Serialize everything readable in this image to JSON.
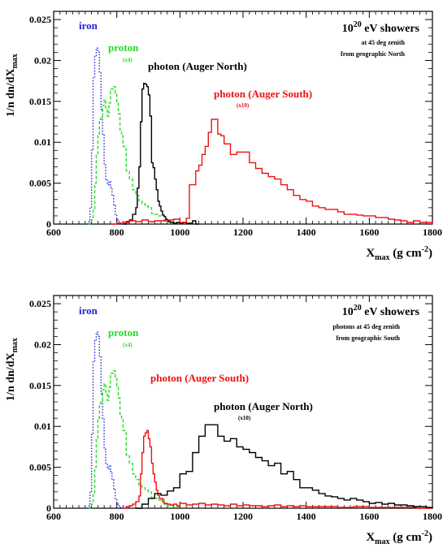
{
  "chart_data": [
    {
      "type": "line",
      "subtype": "step-histogram",
      "title_base": "10",
      "title_exp": "20",
      "title_rest": " eV showers",
      "notes": [
        "at 45 deg zenith",
        "from geographic North"
      ],
      "ylabel": "1/n dn/dX",
      "ylabel_sub": "max",
      "xlabel": "X",
      "xlabel_sub": "max",
      "xlabel_unit": " (g cm",
      "xlabel_unit_exp": "-2",
      "xlabel_close": ")",
      "xlim": [
        600,
        1800
      ],
      "ylim": [
        0,
        0.026
      ],
      "xticks": [
        600,
        800,
        1000,
        1200,
        1400,
        1600,
        1800
      ],
      "xtick_labels": [
        "600",
        "800",
        "1000",
        "1200",
        "1400",
        "1600",
        "1800"
      ],
      "yticks": [
        0,
        0.005,
        0.01,
        0.015,
        0.02,
        0.025
      ],
      "ytick_labels": [
        "0",
        "0.005",
        "0.01",
        "0.015",
        "0.02",
        "0.025"
      ],
      "series": [
        {
          "name": "iron",
          "note": "",
          "color": "#2222dd",
          "dash": "1.5,2",
          "x": [
            700,
            710,
            715,
            720,
            725,
            730,
            735,
            740,
            745,
            750,
            755,
            760,
            765,
            770,
            775,
            780,
            785,
            790,
            795,
            800,
            805,
            810,
            815,
            820,
            830
          ],
          "y": [
            0,
            0.0003,
            0.002,
            0.009,
            0.018,
            0.0205,
            0.0215,
            0.021,
            0.0185,
            0.014,
            0.011,
            0.0072,
            0.0055,
            0.0048,
            0.0052,
            0.0045,
            0.0035,
            0.0023,
            0.0012,
            0.0005,
            0.0003,
            0.0001,
            0,
            0,
            0
          ]
        },
        {
          "name": "proton",
          "note": "(x4)",
          "color": "#22dd22",
          "dash": "4,2.5",
          "x": [
            710,
            715,
            720,
            725,
            730,
            735,
            740,
            745,
            750,
            755,
            760,
            765,
            770,
            775,
            780,
            785,
            790,
            795,
            800,
            805,
            810,
            815,
            820,
            825,
            830,
            840,
            850,
            860,
            870,
            880,
            890,
            900,
            910,
            920,
            930,
            940,
            950,
            960,
            980,
            1000
          ],
          "y": [
            0,
            0.0002,
            0.0005,
            0.0017,
            0.005,
            0.0085,
            0.011,
            0.0128,
            0.013,
            0.0145,
            0.0152,
            0.0142,
            0.0132,
            0.0148,
            0.0165,
            0.0165,
            0.0168,
            0.016,
            0.0148,
            0.0135,
            0.0115,
            0.011,
            0.0095,
            0.0092,
            0.0065,
            0.0055,
            0.0042,
            0.0035,
            0.0028,
            0.0025,
            0.0022,
            0.002,
            0.0013,
            0.0012,
            0.001,
            0.0011,
            0.0005,
            0.0003,
            0.0002,
            0
          ]
        },
        {
          "name": "photon (Auger North)",
          "note": "",
          "color": "#000000",
          "dash": "",
          "x": [
            820,
            830,
            840,
            850,
            860,
            865,
            870,
            875,
            880,
            885,
            890,
            895,
            900,
            905,
            910,
            915,
            920,
            925,
            930,
            935,
            940,
            945,
            950,
            955,
            960,
            965,
            970,
            980,
            990,
            1000,
            1010,
            1020,
            1030,
            1040,
            1050,
            1060
          ],
          "y": [
            0,
            0.0003,
            0.0005,
            0.0012,
            0.002,
            0.0044,
            0.007,
            0.0125,
            0.0165,
            0.0172,
            0.0171,
            0.0168,
            0.0158,
            0.0132,
            0.0075,
            0.0069,
            0.0055,
            0.0042,
            0.0028,
            0.0022,
            0.0016,
            0.0011,
            0.0009,
            0.0006,
            0.0004,
            0.0003,
            0.0002,
            0.0001,
            0.0002,
            0.0001,
            0.0002,
            0.0001,
            0.0001,
            0.0004,
            0,
            0
          ]
        },
        {
          "name": "photon (Auger South)",
          "note": "(x10)",
          "color": "#ee1111",
          "dash": "",
          "x": [
            780,
            800,
            820,
            840,
            860,
            880,
            900,
            920,
            940,
            960,
            980,
            1000,
            1020,
            1030,
            1040,
            1050,
            1060,
            1070,
            1080,
            1090,
            1100,
            1110,
            1120,
            1130,
            1140,
            1150,
            1160,
            1170,
            1180,
            1200,
            1220,
            1240,
            1260,
            1280,
            1300,
            1320,
            1340,
            1360,
            1380,
            1400,
            1420,
            1440,
            1460,
            1480,
            1500,
            1520,
            1540,
            1560,
            1580,
            1600,
            1620,
            1640,
            1660,
            1680,
            1700,
            1720,
            1740,
            1760,
            1780,
            1800
          ],
          "y": [
            0,
            0.0001,
            0.0002,
            0.0004,
            0.0003,
            0.0005,
            0.0003,
            0.0004,
            0.0004,
            0.0005,
            0.0006,
            0.0002,
            0.0007,
            0.0048,
            0.0048,
            0.0065,
            0.0072,
            0.0085,
            0.0095,
            0.0112,
            0.0128,
            0.0128,
            0.011,
            0.0108,
            0.0098,
            0.0098,
            0.0085,
            0.0085,
            0.0088,
            0.0088,
            0.0075,
            0.0068,
            0.0062,
            0.0058,
            0.0055,
            0.0048,
            0.0042,
            0.0035,
            0.003,
            0.0028,
            0.0022,
            0.002,
            0.0018,
            0.0018,
            0.0015,
            0.0012,
            0.0012,
            0.0011,
            0.001,
            0.001,
            0.0008,
            0.0008,
            0.0006,
            0.0005,
            0.0004,
            0.0002,
            0.0004,
            0.0002,
            0.0002,
            0
          ]
        }
      ]
    },
    {
      "type": "line",
      "subtype": "step-histogram",
      "title_base": "10",
      "title_exp": "20",
      "title_rest": " eV showers",
      "notes": [
        "photons at 45 deg zenith",
        "from geographic South"
      ],
      "ylabel": "1/n dn/dX",
      "ylabel_sub": "max",
      "xlabel": "X",
      "xlabel_sub": "max",
      "xlabel_unit": " (g cm",
      "xlabel_unit_exp": "-2",
      "xlabel_close": ")",
      "xlim": [
        600,
        1800
      ],
      "ylim": [
        0,
        0.026
      ],
      "xticks": [
        600,
        800,
        1000,
        1200,
        1400,
        1600,
        1800
      ],
      "xtick_labels": [
        "600",
        "800",
        "1000",
        "1200",
        "1400",
        "1600",
        "1800"
      ],
      "yticks": [
        0,
        0.005,
        0.01,
        0.015,
        0.02,
        0.025
      ],
      "ytick_labels": [
        "0",
        "0.005",
        "0.01",
        "0.015",
        "0.02",
        "0.025"
      ],
      "series": [
        {
          "name": "iron",
          "note": "",
          "color": "#2222dd",
          "dash": "1.5,2",
          "x": [
            700,
            710,
            715,
            720,
            725,
            730,
            735,
            740,
            745,
            750,
            755,
            760,
            765,
            770,
            775,
            780,
            785,
            790,
            795,
            800,
            805,
            810,
            815,
            820,
            830
          ],
          "y": [
            0,
            0.0003,
            0.002,
            0.009,
            0.018,
            0.0205,
            0.0215,
            0.021,
            0.0185,
            0.014,
            0.011,
            0.0072,
            0.0055,
            0.0048,
            0.0052,
            0.0045,
            0.0035,
            0.0023,
            0.0012,
            0.0005,
            0.0003,
            0.0001,
            0,
            0,
            0
          ]
        },
        {
          "name": "proton",
          "note": "(x4)",
          "color": "#22dd22",
          "dash": "4,2.5",
          "x": [
            710,
            715,
            720,
            725,
            730,
            735,
            740,
            745,
            750,
            755,
            760,
            765,
            770,
            775,
            780,
            785,
            790,
            795,
            800,
            805,
            810,
            815,
            820,
            825,
            830,
            840,
            850,
            860,
            870,
            880,
            890,
            900,
            910,
            920,
            930,
            940,
            950,
            960,
            980,
            1000
          ],
          "y": [
            0,
            0.0002,
            0.0005,
            0.0017,
            0.005,
            0.0085,
            0.011,
            0.0128,
            0.013,
            0.0145,
            0.0152,
            0.0142,
            0.0132,
            0.0148,
            0.0165,
            0.0165,
            0.0168,
            0.016,
            0.0148,
            0.0135,
            0.0115,
            0.011,
            0.0095,
            0.0092,
            0.0065,
            0.0055,
            0.0042,
            0.0035,
            0.0028,
            0.0025,
            0.0022,
            0.002,
            0.0013,
            0.0012,
            0.001,
            0.0011,
            0.0005,
            0.0003,
            0.0002,
            0
          ]
        },
        {
          "name": "photon (Auger South)",
          "note": "",
          "color": "#ee1111",
          "dash": "",
          "x": [
            820,
            830,
            840,
            850,
            860,
            870,
            875,
            880,
            885,
            890,
            895,
            900,
            905,
            910,
            915,
            920,
            925,
            930,
            935,
            940,
            945,
            950,
            960,
            970,
            980,
            990,
            1000,
            1020,
            1040,
            1060,
            1080,
            1100,
            1120,
            1140,
            1160,
            1180,
            1200,
            1220,
            1240,
            1260,
            1280,
            1300,
            1320,
            1340,
            1360,
            1380,
            1400,
            1450,
            1500,
            1550,
            1600,
            1650,
            1700,
            1750,
            1800
          ],
          "y": [
            0,
            0.0002,
            0.0003,
            0.0005,
            0.0008,
            0.0015,
            0.0042,
            0.0068,
            0.0088,
            0.0092,
            0.0095,
            0.0085,
            0.0075,
            0.0055,
            0.0042,
            0.0032,
            0.0022,
            0.0016,
            0.0012,
            0.0012,
            0.0008,
            0.0006,
            0.0005,
            0.0004,
            0.0005,
            0.0003,
            0.0006,
            0.0004,
            0.0005,
            0.0006,
            0.0004,
            0.0005,
            0.0004,
            0.0003,
            0.0005,
            0.0003,
            0.0004,
            0.0003,
            0.0003,
            0.0002,
            0.0003,
            0.0004,
            0.0002,
            0.0003,
            0.0002,
            0.0003,
            0.0002,
            0.0002,
            0.0001,
            0.0002,
            0.0001,
            0.0001,
            0.0001,
            0,
            0
          ]
        },
        {
          "name": "photon (Auger North)",
          "note": "(x10)",
          "color": "#000000",
          "dash": "",
          "x": [
            860,
            880,
            900,
            920,
            940,
            960,
            980,
            1000,
            1020,
            1040,
            1060,
            1080,
            1100,
            1120,
            1140,
            1160,
            1180,
            1200,
            1220,
            1240,
            1260,
            1280,
            1300,
            1320,
            1340,
            1360,
            1380,
            1400,
            1420,
            1440,
            1460,
            1480,
            1500,
            1520,
            1540,
            1560,
            1580,
            1600,
            1620,
            1640,
            1660,
            1680,
            1700,
            1720,
            1740,
            1760,
            1780,
            1800
          ],
          "y": [
            0,
            0.0005,
            0.0012,
            0.0018,
            0.0016,
            0.0021,
            0.0025,
            0.0042,
            0.0045,
            0.0068,
            0.0088,
            0.0102,
            0.0102,
            0.0088,
            0.0082,
            0.0085,
            0.0075,
            0.0072,
            0.0068,
            0.0062,
            0.0058,
            0.0052,
            0.0055,
            0.0042,
            0.0045,
            0.0035,
            0.0025,
            0.0025,
            0.0022,
            0.0018,
            0.0015,
            0.0014,
            0.0012,
            0.001,
            0.0012,
            0.001,
            0.0008,
            0.0006,
            0.0007,
            0.0005,
            0.0006,
            0.0004,
            0.0004,
            0.0003,
            0.0002,
            0.0002,
            0.0001,
            0
          ]
        }
      ]
    }
  ]
}
